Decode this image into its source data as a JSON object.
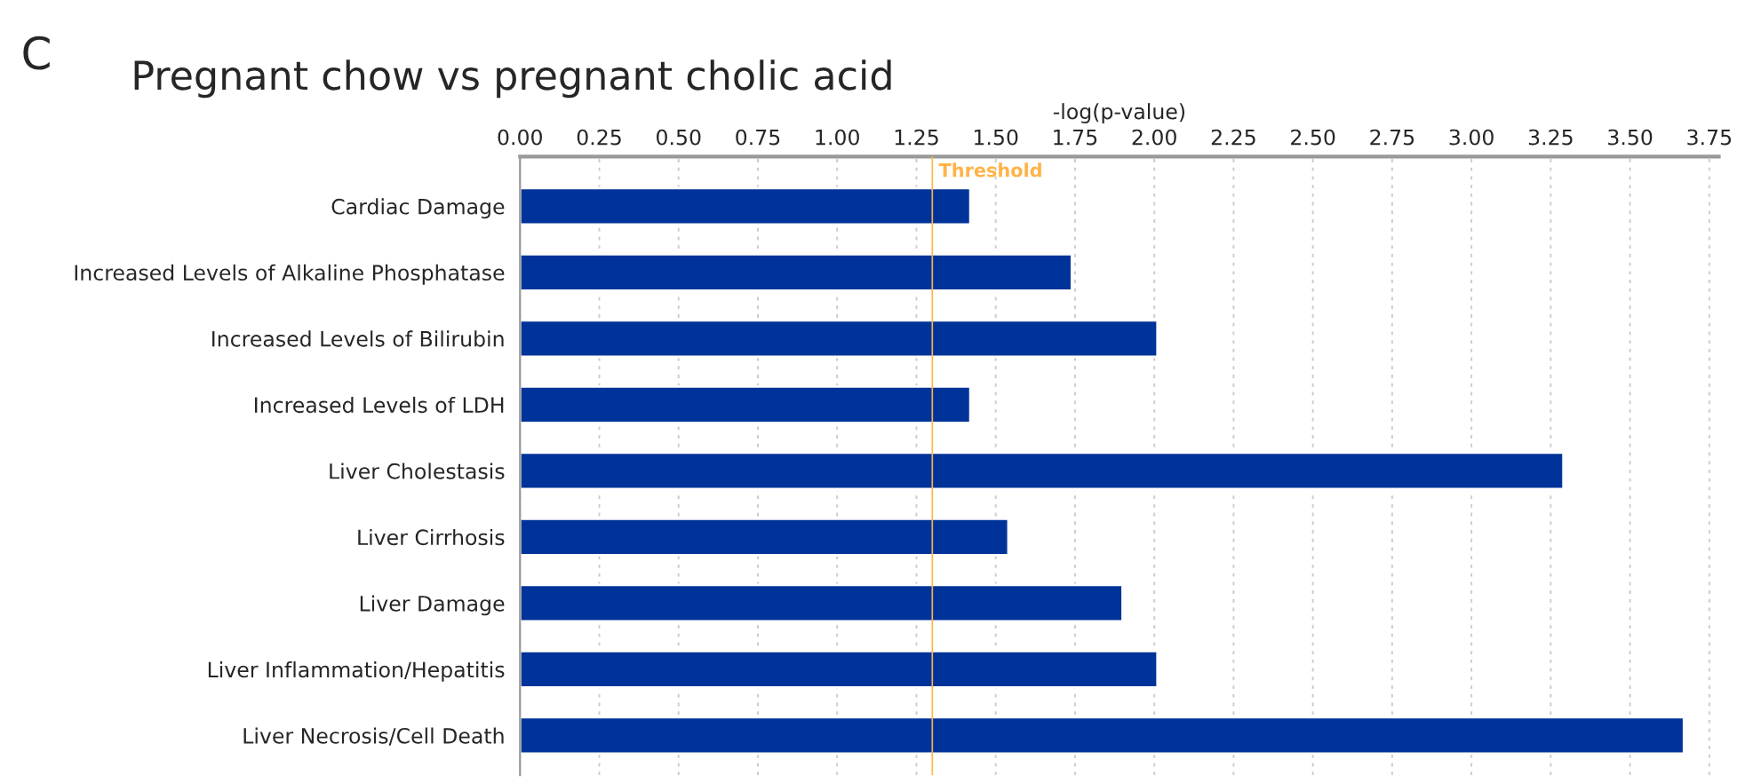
{
  "chart_data": {
    "type": "bar",
    "orientation": "horizontal",
    "title": "Pregnant chow vs pregnant cholic acid",
    "xlabel": "-log(p-value)",
    "annotations": [
      "C"
    ],
    "categories": [
      "Cardiac Damage",
      "Increased Levels of Alkaline Phosphatase",
      "Increased Levels of Bilirubin",
      "Increased Levels of LDH",
      "Liver Cholestasis",
      "Liver Cirrhosis",
      "Liver Damage",
      "Liver Inflammation/Hepatitis",
      "Liver Necrosis/Cell Death"
    ],
    "values": [
      1.42,
      1.74,
      2.01,
      1.42,
      3.29,
      1.54,
      1.9,
      2.01,
      3.67
    ],
    "color": "#003399",
    "xlim": [
      0,
      3.78
    ],
    "xticks": [
      {
        "value": 0,
        "label": "0.00"
      },
      {
        "value": 0.25,
        "label": "0.25"
      },
      {
        "value": 0.5,
        "label": "0.50"
      },
      {
        "value": 0.75,
        "label": "0.75"
      },
      {
        "value": 1,
        "label": "1.00"
      },
      {
        "value": 1.25,
        "label": "1.25"
      },
      {
        "value": 1.5,
        "label": "1.50"
      },
      {
        "value": 1.75,
        "label": "1.75"
      },
      {
        "value": 2,
        "label": "2.00"
      },
      {
        "value": 2.25,
        "label": "2.25"
      },
      {
        "value": 2.5,
        "label": "2.50"
      },
      {
        "value": 2.75,
        "label": "2.75"
      },
      {
        "value": 3,
        "label": "3.00"
      },
      {
        "value": 3.25,
        "label": "3.25"
      },
      {
        "value": 3.5,
        "label": "3.50"
      },
      {
        "value": 3.75,
        "label": "3.75"
      }
    ],
    "grid": "x",
    "ref_lines": [
      {
        "axis": "x",
        "value": 1.3,
        "label": "Threshold",
        "color": "#ffb347"
      }
    ]
  }
}
